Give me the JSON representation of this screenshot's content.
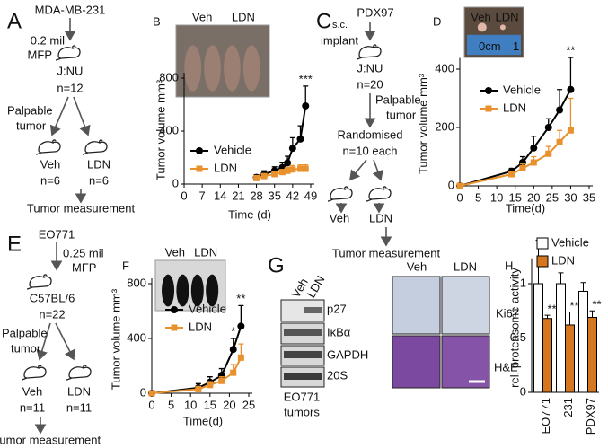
{
  "panels_A": {
    "label": "A",
    "texts": [
      "MDA-MB-231",
      "0.2 mil",
      "MFP",
      "J:NU",
      "n=12",
      "Palpable",
      "tumor",
      "Veh",
      "LDN",
      "n=6",
      "n=6",
      "Tumor measurement"
    ]
  },
  "panels_C": {
    "label": "C",
    "texts": [
      "s.c.",
      "PDX97",
      "implant",
      "J:NU",
      "n=20",
      "Palpable",
      "tumor",
      "Randomised",
      "n=10 each",
      "Veh",
      "LDN",
      "Tumor measurement"
    ]
  },
  "panels_E": {
    "label": "E",
    "texts": [
      "EO771",
      "0.25 mil",
      "MFP",
      "C57BL/6",
      "n=22",
      "Palpable",
      "tumor",
      "Veh",
      "LDN",
      "n=11",
      "n=11",
      "Tumor measurement"
    ]
  },
  "panels_G": {
    "label": "G",
    "lanes": [
      "Veh",
      "LDN"
    ],
    "proteins": [
      "p27",
      "IκBα",
      "GAPDH",
      "20S"
    ],
    "caption": [
      "EO771",
      "tumors"
    ],
    "histology_columns": [
      "Veh",
      "LDN"
    ],
    "histology_rows": [
      "Ki67",
      "H&E"
    ]
  },
  "chart_data": [
    {
      "type": "line",
      "panel_label": "B",
      "xlabel": "Time (d)",
      "ylabel": "Tumor volume mm³",
      "photo_labels": [
        "Veh",
        "LDN"
      ],
      "x": [
        28,
        31,
        35,
        38,
        40,
        42,
        45,
        47
      ],
      "xlim": [
        0,
        49
      ],
      "xticks": [
        0,
        7,
        14,
        21,
        28,
        35,
        42,
        49
      ],
      "ylim": [
        0,
        800
      ],
      "yticks": [
        0,
        400,
        800
      ],
      "series": [
        {
          "name": "Vehicle",
          "color": "#000000",
          "marker": "circle",
          "values": [
            50,
            75,
            100,
            125,
            160,
            270,
            340,
            590
          ],
          "errors": [
            20,
            25,
            30,
            40,
            50,
            80,
            100,
            150
          ],
          "significance": [
            null,
            null,
            null,
            null,
            null,
            null,
            null,
            "***"
          ]
        },
        {
          "name": "LDN",
          "color": "#e8912d",
          "marker": "square",
          "values": [
            45,
            60,
            75,
            90,
            100,
            110,
            115,
            115
          ],
          "errors": [
            10,
            15,
            20,
            20,
            25,
            30,
            30,
            30
          ]
        }
      ]
    },
    {
      "type": "line",
      "panel_label": "D",
      "xlabel": "Time(d)",
      "ylabel": "Tumor volume mm³",
      "photo_labels": [
        "Veh",
        "LDN"
      ],
      "ruler_labels": [
        "0cm",
        "1"
      ],
      "x": [
        0,
        14,
        17,
        20,
        24,
        27,
        30
      ],
      "xlim": [
        0,
        35
      ],
      "xticks": [
        0,
        5,
        10,
        15,
        20,
        25,
        30,
        35
      ],
      "ylim": [
        0,
        420
      ],
      "yticks": [
        0,
        200,
        400
      ],
      "series": [
        {
          "name": "Vehicle",
          "color": "#000000",
          "marker": "circle",
          "values": [
            0,
            50,
            80,
            130,
            200,
            260,
            330
          ],
          "errors": [
            0,
            10,
            20,
            40,
            30,
            70,
            110
          ],
          "significance": [
            null,
            null,
            null,
            null,
            null,
            null,
            "**"
          ]
        },
        {
          "name": "LDN",
          "color": "#e8912d",
          "marker": "square",
          "values": [
            0,
            40,
            60,
            80,
            110,
            150,
            190
          ],
          "errors": [
            0,
            10,
            15,
            20,
            25,
            40,
            110
          ]
        }
      ]
    },
    {
      "type": "line",
      "panel_label": "F",
      "xlabel": "Time(d)",
      "ylabel": "Tumor volume mm³",
      "photo_labels": [
        "Veh",
        "LDN"
      ],
      "x": [
        0,
        12,
        15,
        18,
        21,
        23
      ],
      "xlim": [
        0,
        25
      ],
      "xticks": [
        0,
        5,
        10,
        15,
        20,
        25
      ],
      "ylim": [
        0,
        800
      ],
      "yticks": [
        0,
        400,
        800
      ],
      "series": [
        {
          "name": "Vehicle",
          "color": "#000000",
          "marker": "circle",
          "values": [
            0,
            40,
            80,
            130,
            320,
            490
          ],
          "errors": [
            0,
            30,
            40,
            50,
            80,
            150
          ],
          "significance": [
            null,
            null,
            null,
            null,
            "*",
            "**"
          ]
        },
        {
          "name": "LDN",
          "color": "#e8912d",
          "marker": "square",
          "values": [
            0,
            30,
            60,
            90,
            150,
            260
          ],
          "errors": [
            0,
            20,
            25,
            30,
            60,
            100
          ]
        }
      ]
    },
    {
      "type": "bar",
      "panel_label": "H",
      "ylabel": "rel. proteasome activity",
      "categories": [
        "EO771",
        "231",
        "PDX97"
      ],
      "ylim": [
        0,
        1.2
      ],
      "yticks": [
        0,
        0.5,
        1
      ],
      "series": [
        {
          "name": "Vehicle",
          "color": "#ffffff",
          "values": [
            1,
            1,
            0.93
          ],
          "errors": [
            0.4,
            0.1,
            0.08
          ]
        },
        {
          "name": "LDN",
          "color": "#d4771f",
          "values": [
            0.68,
            0.62,
            0.69
          ],
          "errors": [
            0.03,
            0.12,
            0.06
          ],
          "significance": [
            "**",
            "**",
            "**"
          ]
        }
      ]
    }
  ]
}
